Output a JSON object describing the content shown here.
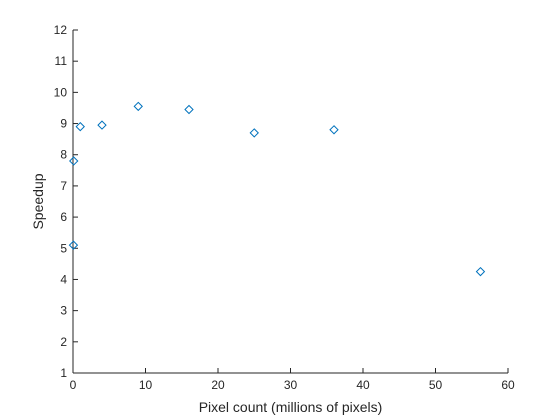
{
  "chart_data": {
    "type": "scatter",
    "title": "",
    "xlabel": "Pixel count (millions of pixels)",
    "ylabel": "Speedup",
    "xlim": [
      0,
      60
    ],
    "ylim": [
      1,
      12
    ],
    "xticks": [
      0,
      10,
      20,
      30,
      40,
      50,
      60
    ],
    "yticks": [
      1,
      2,
      3,
      4,
      5,
      6,
      7,
      8,
      9,
      10,
      11,
      12
    ],
    "grid": false,
    "legend": "none",
    "marker": "diamond",
    "color": "#0072BD",
    "series": [
      {
        "x": [
          0.06,
          0.1,
          1.0,
          4.0,
          9.0,
          16.0,
          25.0,
          36.0,
          56.2
        ],
        "y": [
          5.1,
          7.8,
          8.9,
          8.95,
          9.55,
          9.45,
          8.7,
          8.8,
          4.25
        ]
      }
    ]
  }
}
